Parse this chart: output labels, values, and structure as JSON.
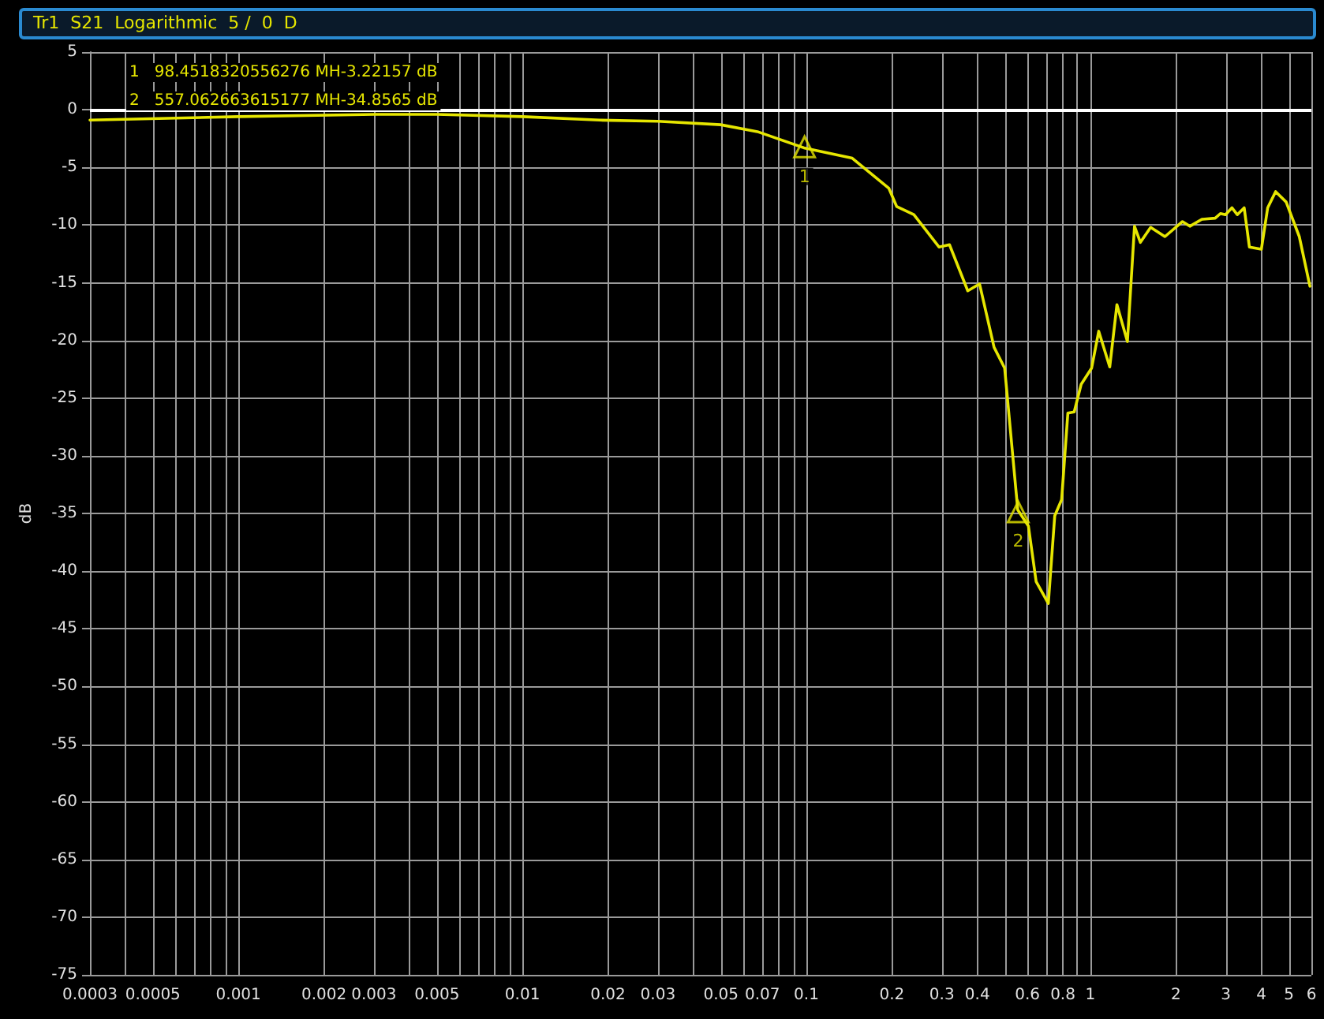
{
  "chart_data": {
    "type": "line",
    "title": "Tr1  S21  Logarithmic  5 /  0  D",
    "ylabel": "dB",
    "annotations": [
      "1   98.4518320556276 MH-3.22157 dB",
      "2   557.062663615177 MH-34.8565 dB",
      {
        "text": "1",
        "x": 0.0985,
        "y": -3.22
      },
      {
        "text": "2",
        "x": 0.557,
        "y": -34.86
      }
    ],
    "series": [
      {
        "color": "#e6e600",
        "x": [
          0.0003,
          0.001,
          0.003,
          0.005,
          0.01,
          0.0187,
          0.03,
          0.0499,
          0.0672,
          0.098,
          0.145,
          0.195,
          0.208,
          0.239,
          0.293,
          0.319,
          0.37,
          0.407,
          0.458,
          0.499,
          0.555,
          0.605,
          0.644,
          0.711,
          0.749,
          0.792,
          0.833,
          0.877,
          0.928,
          1.01,
          1.07,
          1.17,
          1.24,
          1.35,
          1.43,
          1.5,
          1.63,
          1.83,
          2.11,
          2.24,
          2.47,
          2.75,
          2.87,
          2.99,
          3.15,
          3.29,
          3.48,
          3.63,
          4.0,
          4.21,
          4.49,
          4.89,
          5.44,
          5.93
        ],
        "values": [
          -0.9,
          -0.6,
          -0.4,
          -0.4,
          -0.6,
          -0.9,
          -1.0,
          -1.3,
          -1.9,
          -3.3,
          -4.2,
          -6.8,
          -8.4,
          -9.1,
          -11.9,
          -11.7,
          -15.7,
          -15.1,
          -20.6,
          -22.4,
          -34.7,
          -36.1,
          -40.9,
          -42.8,
          -35.2,
          -33.8,
          -26.3,
          -26.2,
          -23.8,
          -22.4,
          -19.2,
          -22.3,
          -16.9,
          -20.1,
          -10.1,
          -11.5,
          -10.2,
          -11.0,
          -9.7,
          -10.1,
          -9.5,
          -9.4,
          -9.0,
          -9.1,
          -8.5,
          -9.1,
          -8.5,
          -11.9,
          -12.1,
          -8.5,
          -7.1,
          -8.0,
          -11.0,
          -15.3
        ]
      }
    ],
    "log": "x",
    "xlim": [
      0.0003,
      6
    ],
    "xticks": [
      0.0003,
      {
        "value": 0.0004,
        "label": null
      },
      0.0005,
      {
        "value": 0.0006,
        "label": null
      },
      {
        "value": 0.0007,
        "label": null
      },
      {
        "value": 0.0008,
        "label": null
      },
      {
        "value": 0.0009,
        "label": null
      },
      0.001,
      0.002,
      0.003,
      {
        "value": 0.004,
        "label": null
      },
      0.005,
      {
        "value": 0.006,
        "label": null
      },
      {
        "value": 0.007,
        "label": null
      },
      {
        "value": 0.008,
        "label": null
      },
      {
        "value": 0.009,
        "label": null
      },
      0.01,
      0.02,
      0.03,
      {
        "value": 0.04,
        "label": null
      },
      0.05,
      {
        "value": 0.06,
        "label": null
      },
      0.07,
      {
        "value": 0.08,
        "label": null
      },
      {
        "value": 0.09,
        "label": null
      },
      0.1,
      0.2,
      0.3,
      0.4,
      {
        "value": 0.5,
        "label": null
      },
      0.6,
      {
        "value": 0.7,
        "label": null
      },
      0.8,
      {
        "value": 0.9,
        "label": null
      },
      1,
      2,
      3,
      4,
      5,
      6
    ],
    "ylim": [
      -75,
      5
    ],
    "yticks": [
      -75,
      -70,
      -65,
      -60,
      -55,
      -50,
      -45,
      -40,
      -35,
      -30,
      -25,
      -20,
      -15,
      -10,
      -5,
      0,
      5
    ],
    "ref_lines": [
      {
        "axis": "y",
        "value": 0,
        "color": "#ffffff"
      }
    ],
    "grid": true,
    "marker": "none",
    "line_style": "solid"
  }
}
